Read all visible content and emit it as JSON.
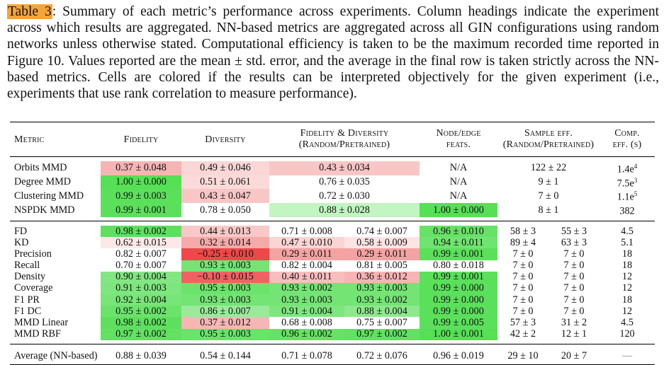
{
  "caption": {
    "label": "Table 3",
    "text": ": Summary of each metric’s performance across experiments. Column headings indicate the experiment across which results are aggregated. NN-based metrics are aggregated across all GIN configurations using random networks unless otherwise stated. Computational efficiency is taken to be the maximum recorded time reported in Figure 10. Values reported are the mean ± std. error, and the average in the final row is taken strictly across the NN-based metrics. Cells are colored if the results can be interpreted objectively for the given experiment (i.e., experiments that use rank correlation to measure performance)."
  },
  "headers": {
    "metric": "Metric",
    "fidelity": "Fidelity",
    "diversity": "Diversity",
    "fid_div_line1": "Fidelity & Diversity",
    "fid_div_line2": "(Random/Pretrained)",
    "node_edge_line1": "Node/edge",
    "node_edge_line2": "feats.",
    "sample_line1": "Sample eff.",
    "sample_line2": "(Random/Pretrained)",
    "comp_line1": "Comp.",
    "comp_line2": "eff. (s)"
  },
  "classic_rows": [
    {
      "metric": "Orbits MMD",
      "fidelity": "0.37 ± 0.048",
      "fid_color": "#f6b4b4",
      "diversity": "0.49 ± 0.046",
      "div_color": "#fbd6d6",
      "fid_div": "0.43 ± 0.034",
      "fd_color": "#f9c6c6",
      "node_edge": "N/A",
      "ne_color": "",
      "sample": "122 ± 22",
      "comp": "1.4e",
      "comp_exp": "4"
    },
    {
      "metric": "Degree MMD",
      "fidelity": "1.00 ± 0.000",
      "fid_color": "#55e055",
      "diversity": "0.51 ± 0.061",
      "div_color": "#fcdada",
      "fid_div": "0.76 ± 0.035",
      "fd_color": "",
      "node_edge": "N/A",
      "ne_color": "",
      "sample": "9 ± 1",
      "comp": "7.5e",
      "comp_exp": "3"
    },
    {
      "metric": "Clustering MMD",
      "fidelity": "0.99 ± 0.003",
      "fid_color": "#5be05b",
      "diversity": "0.43 ± 0.047",
      "div_color": "#f9c6c6",
      "fid_div": "0.72 ± 0.030",
      "fd_color": "",
      "node_edge": "N/A",
      "ne_color": "",
      "sample": "7 ± 0",
      "comp": "1.1e",
      "comp_exp": "5"
    },
    {
      "metric": "NSPDK MMD",
      "fidelity": "0.99 ± 0.001",
      "fid_color": "#5be05b",
      "diversity": "0.78 ± 0.050",
      "div_color": "",
      "fid_div": "0.88 ± 0.028",
      "fd_color": "#c2f5c2",
      "node_edge": "1.00 ± 0.000",
      "ne_color": "#55e055",
      "sample": "8 ± 1",
      "comp": "382",
      "comp_exp": ""
    }
  ],
  "nn_rows": [
    {
      "metric": "FD",
      "fidelity": "0.98 ± 0.002",
      "fid_color": "#5ee05e",
      "diversity": "0.44 ± 0.013",
      "div_color": "#f9c8c8",
      "fd_rand": "0.71 ± 0.008",
      "fdr_color": "",
      "fd_pre": "0.74 ± 0.007",
      "fdp_color": "",
      "node_edge": "0.96 ± 0.010",
      "ne_color": "#66e266",
      "s_rand": "58 ± 3",
      "s_pre": "55 ± 3",
      "comp": "4.5"
    },
    {
      "metric": "KD",
      "fidelity": "0.62 ± 0.015",
      "fid_color": "#fde8e8",
      "diversity": "0.32 ± 0.014",
      "div_color": "#f5aaaa",
      "fd_rand": "0.47 ± 0.010",
      "fdr_color": "#fbd4d4",
      "fd_pre": "0.58 ± 0.009",
      "fdp_color": "#fde4e4",
      "node_edge": "0.94 ± 0.011",
      "ne_color": "#70e470",
      "s_rand": "89 ± 4",
      "s_pre": "63 ± 3",
      "comp": "5.1"
    },
    {
      "metric": "Precision",
      "fidelity": "0.82 ± 0.007",
      "fid_color": "",
      "diversity": "−0.25 ± 0.010",
      "div_color": "#ee4848",
      "fd_rand": "0.29 ± 0.011",
      "fdr_color": "#f4a2a2",
      "fd_pre": "0.29 ± 0.011",
      "fdp_color": "#f4a2a2",
      "node_edge": "0.99 ± 0.001",
      "ne_color": "#5be05b",
      "s_rand": "7 ± 0",
      "s_pre": "7 ± 0",
      "comp": "18"
    },
    {
      "metric": "Recall",
      "fidelity": "0.70 ± 0.007",
      "fid_color": "",
      "diversity": "0.93 ± 0.003",
      "div_color": "#74e474",
      "fd_rand": "0.82 ± 0.004",
      "fdr_color": "",
      "fd_pre": "0.81 ± 0.005",
      "fdp_color": "",
      "node_edge": "0.80 ± 0.018",
      "ne_color": "",
      "s_rand": "7 ± 0",
      "s_pre": "7 ± 0",
      "comp": "18"
    },
    {
      "metric": "Density",
      "fidelity": "0.90 ± 0.004",
      "fid_color": "#82e682",
      "diversity": "−0.10 ± 0.015",
      "div_color": "#f06262",
      "fd_rand": "0.40 ± 0.011",
      "fdr_color": "#f8bebe",
      "fd_pre": "0.36 ± 0.012",
      "fdp_color": "#f6b4b4",
      "node_edge": "0.99 ± 0.001",
      "ne_color": "#5be05b",
      "s_rand": "7 ± 0",
      "s_pre": "7 ± 0",
      "comp": "12"
    },
    {
      "metric": "Coverage",
      "fidelity": "0.91 ± 0.003",
      "fid_color": "#7ee67e",
      "diversity": "0.95 ± 0.003",
      "div_color": "#6ae36a",
      "fd_rand": "0.93 ± 0.002",
      "fdr_color": "#74e474",
      "fd_pre": "0.93 ± 0.003",
      "fdp_color": "#74e474",
      "node_edge": "0.99 ± 0.000",
      "ne_color": "#5be05b",
      "s_rand": "7 ± 0",
      "s_pre": "7 ± 0",
      "comp": "12"
    },
    {
      "metric": "F1 PR",
      "fidelity": "0.92 ± 0.004",
      "fid_color": "#78e578",
      "diversity": "0.93 ± 0.003",
      "div_color": "#74e474",
      "fd_rand": "0.93 ± 0.003",
      "fdr_color": "#74e474",
      "fd_pre": "0.93 ± 0.002",
      "fdp_color": "#74e474",
      "node_edge": "0.99 ± 0.000",
      "ne_color": "#5be05b",
      "s_rand": "7 ± 0",
      "s_pre": "7 ± 0",
      "comp": "18"
    },
    {
      "metric": "F1 DC",
      "fidelity": "0.95 ± 0.002",
      "fid_color": "#6ae36a",
      "diversity": "0.86 ± 0.007",
      "div_color": "#9aea9a",
      "fd_rand": "0.91 ± 0.004",
      "fdr_color": "#7ee67e",
      "fd_pre": "0.88 ± 0.004",
      "fdp_color": "#8ee88e",
      "node_edge": "0.99 ± 0.000",
      "ne_color": "#5be05b",
      "s_rand": "7 ± 0",
      "s_pre": "7 ± 0",
      "comp": "12"
    },
    {
      "metric": "MMD Linear",
      "fidelity": "0.98 ± 0.002",
      "fid_color": "#5ee05e",
      "diversity": "0.37 ± 0.012",
      "div_color": "#f6b6b6",
      "fd_rand": "0.68 ± 0.008",
      "fdr_color": "",
      "fd_pre": "0.75 ± 0.007",
      "fdp_color": "",
      "node_edge": "0.99 ± 0.005",
      "ne_color": "#5be05b",
      "s_rand": "57 ± 3",
      "s_pre": "31 ± 2",
      "comp": "4.5"
    },
    {
      "metric": "MMD RBF",
      "fidelity": "0.97 ± 0.002",
      "fid_color": "#62e162",
      "diversity": "0.95 ± 0.003",
      "div_color": "#6ae36a",
      "fd_rand": "0.96 ± 0.002",
      "fdr_color": "#66e266",
      "fd_pre": "0.97 ± 0.002",
      "fdp_color": "#62e162",
      "node_edge": "1.00 ± 0.001",
      "ne_color": "#55e055",
      "s_rand": "42 ± 2",
      "s_pre": "12 ± 1",
      "comp": "120"
    }
  ],
  "average_row": {
    "metric": "Average (NN-based)",
    "fidelity": "0.88 ± 0.039",
    "diversity": "0.54 ± 0.144",
    "fd_rand": "0.71 ± 0.078",
    "fd_pre": "0.72 ± 0.076",
    "node_edge": "0.96 ± 0.019",
    "s_rand": "29 ± 10",
    "s_pre": "20 ± 7",
    "comp": "—"
  }
}
